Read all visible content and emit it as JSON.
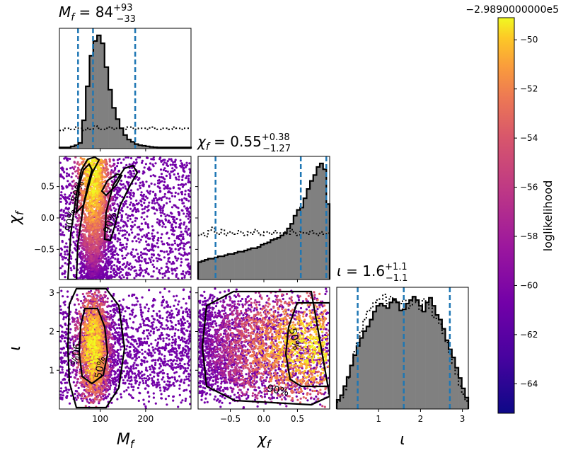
{
  "chart_data": {
    "type": "corner",
    "colorbar": {
      "label": "loglikelihood",
      "offset_text": "−2.9890000000e5",
      "ticks": [
        "−50",
        "−52",
        "−54",
        "−56",
        "−58",
        "−60",
        "−62",
        "−64"
      ],
      "range": [
        -65.2,
        -49.1
      ],
      "colormap": "plasma"
    },
    "parameters": [
      {
        "key": "mf",
        "label": "M",
        "sub": "f",
        "range": [
          10,
          300
        ],
        "ticks": [
          "100",
          "200"
        ],
        "tick_values": [
          100,
          200
        ],
        "summary": {
          "name": "M",
          "sub": "f",
          "median_text": "84",
          "plus": "+93",
          "minus": "−33",
          "median": 84,
          "lower": 51,
          "upper": 177
        },
        "posterior_hist": [
          0.01,
          0.01,
          0.01,
          0.02,
          0.03,
          0.05,
          0.25,
          0.55,
          0.82,
          0.95,
          1.0,
          0.93,
          0.72,
          0.52,
          0.36,
          0.26,
          0.18,
          0.12,
          0.08,
          0.06,
          0.04,
          0.03,
          0.025,
          0.02,
          0.015,
          0.012,
          0.01,
          0.01,
          0.01,
          0.01,
          0.01,
          0.01,
          0.01,
          0.01,
          0.01
        ],
        "prior_hist": [
          0.16,
          0.18,
          0.18,
          0.17,
          0.19,
          0.18,
          0.16,
          0.18,
          0.17,
          0.2,
          0.18,
          0.17,
          0.18,
          0.19,
          0.17,
          0.18,
          0.18,
          0.17,
          0.19,
          0.18,
          0.17,
          0.18,
          0.18,
          0.17,
          0.19,
          0.18,
          0.17,
          0.18,
          0.18,
          0.17,
          0.19,
          0.18,
          0.17,
          0.18,
          0.18
        ]
      },
      {
        "key": "chif",
        "label": "χ",
        "sub": "f",
        "range": [
          -0.98,
          0.98
        ],
        "ticks": [
          "−0.5",
          "0.0",
          "0.5"
        ],
        "tick_values": [
          -0.5,
          0.0,
          0.5
        ],
        "summary": {
          "name": "χ",
          "sub": "f",
          "median_text": "0.55",
          "plus": "+0.38",
          "minus": "−1.27",
          "median": 0.55,
          "lower": -0.72,
          "upper": 0.93
        },
        "posterior_hist": [
          0.15,
          0.16,
          0.17,
          0.18,
          0.18,
          0.19,
          0.2,
          0.2,
          0.21,
          0.22,
          0.22,
          0.23,
          0.24,
          0.24,
          0.25,
          0.26,
          0.27,
          0.27,
          0.28,
          0.3,
          0.31,
          0.32,
          0.34,
          0.35,
          0.36,
          0.38,
          0.4,
          0.44,
          0.48,
          0.55,
          0.6,
          0.62,
          0.7,
          0.78,
          0.85,
          0.9,
          0.97,
          1.0,
          0.95,
          0.65
        ],
        "prior_hist": [
          0.38,
          0.4,
          0.37,
          0.42,
          0.45,
          0.4,
          0.39,
          0.43,
          0.38,
          0.41,
          0.4,
          0.39,
          0.42,
          0.4,
          0.38,
          0.41,
          0.39,
          0.43,
          0.4,
          0.38,
          0.41,
          0.4,
          0.39,
          0.42,
          0.4,
          0.38,
          0.41,
          0.39,
          0.43,
          0.4,
          0.38,
          0.41,
          0.4,
          0.39,
          0.42,
          0.4,
          0.38,
          0.41,
          0.39,
          0.4
        ]
      },
      {
        "key": "iota",
        "label": "ι",
        "sub": "",
        "range": [
          0,
          3.1416
        ],
        "ticks": [
          "1",
          "2",
          "3"
        ],
        "tick_values": [
          1,
          2,
          3
        ],
        "summary": {
          "name": "ι",
          "sub": "",
          "median_text": "1.6",
          "plus": "+1.1",
          "minus": "−1.1",
          "median": 1.6,
          "lower": 0.5,
          "upper": 2.7
        },
        "posterior_hist": [
          0.08,
          0.12,
          0.2,
          0.28,
          0.38,
          0.47,
          0.55,
          0.62,
          0.68,
          0.72,
          0.78,
          0.85,
          0.9,
          0.92,
          0.9,
          0.88,
          0.93,
          0.96,
          0.93,
          0.86,
          0.87,
          0.92,
          0.95,
          0.98,
          0.95,
          0.9,
          0.85,
          0.93,
          0.97,
          0.9,
          0.82,
          0.78,
          0.7,
          0.6,
          0.52,
          0.45,
          0.36,
          0.27,
          0.18,
          0.1
        ],
        "prior_hist": [
          0.06,
          0.1,
          0.17,
          0.27,
          0.38,
          0.5,
          0.58,
          0.68,
          0.78,
          0.85,
          0.88,
          0.93,
          0.95,
          0.96,
          1.0,
          0.92,
          0.98,
          0.95,
          0.94,
          0.92,
          0.96,
          0.88,
          0.9,
          0.97,
          0.93,
          0.86,
          0.96,
          0.91,
          0.88,
          0.8,
          0.79,
          0.74,
          0.66,
          0.58,
          0.48,
          0.4,
          0.3,
          0.2,
          0.13,
          0.07
        ]
      }
    ],
    "contour_labels": [
      "50%",
      "90%"
    ]
  }
}
